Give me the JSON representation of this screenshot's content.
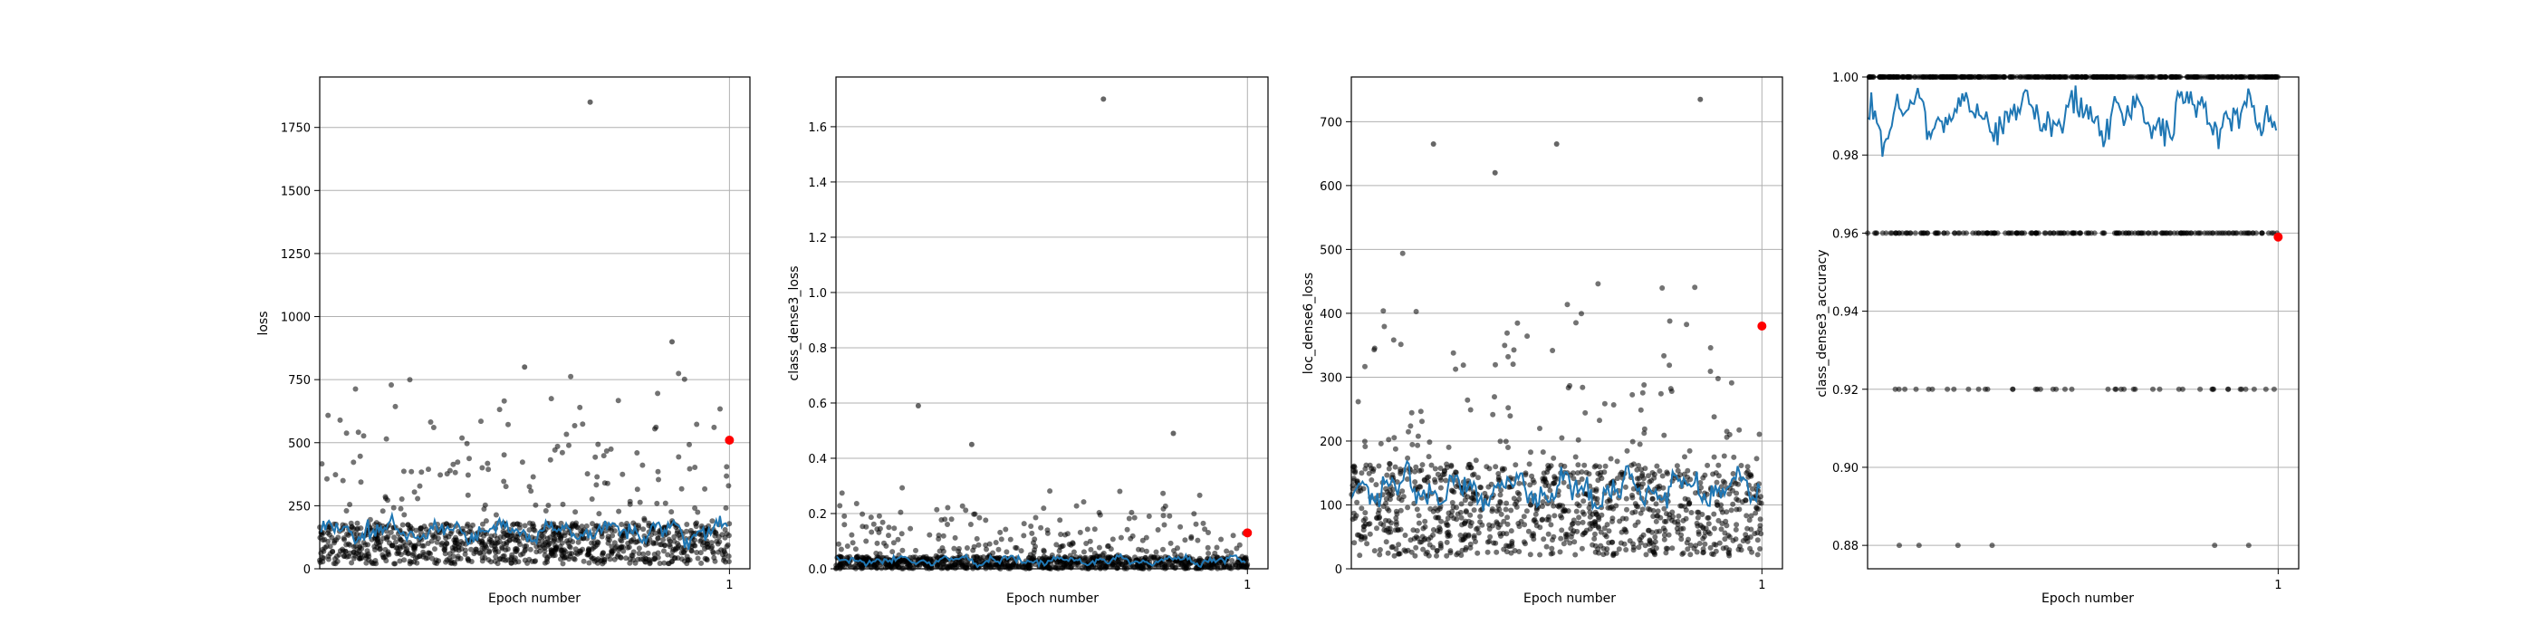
{
  "figure": {
    "background": "#ffffff",
    "point_color": "#000000",
    "moving_average_color": "#1f77b4",
    "last_point_color": "#ff0000",
    "grid": "y"
  },
  "chart_data": [
    {
      "type": "scatter",
      "xlabel": "Epoch number",
      "ylabel": "loss",
      "xlim": [
        0,
        1.05
      ],
      "ylim": [
        0,
        1950
      ],
      "xticks": [
        "1"
      ],
      "yticks": [
        "0",
        "250",
        "500",
        "750",
        "1000",
        "1250",
        "1500",
        "1750"
      ],
      "ytick_values": [
        0,
        250,
        500,
        750,
        1000,
        1250,
        1500,
        1750
      ],
      "grid": true,
      "series": [
        {
          "kind": "scatter",
          "note_count": 1200,
          "y_typical": [
            20,
            200
          ],
          "y_spread_max": 800,
          "outliers": [
            {
              "x": 0.66,
              "y": 1850
            },
            {
              "x": 0.86,
              "y": 900
            },
            {
              "x": 0.5,
              "y": 800
            }
          ]
        },
        {
          "kind": "line",
          "values_around": 150,
          "amplitude": 40
        },
        {
          "kind": "point",
          "x": 1.0,
          "y": 510
        }
      ]
    },
    {
      "type": "scatter",
      "xlabel": "Epoch number",
      "ylabel": "class_dense3_loss",
      "xlim": [
        0,
        1.05
      ],
      "ylim": [
        0,
        1.78
      ],
      "xticks": [
        "1"
      ],
      "yticks": [
        "0.0",
        "0.2",
        "0.4",
        "0.6",
        "0.8",
        "1.0",
        "1.2",
        "1.4",
        "1.6"
      ],
      "ytick_values": [
        0,
        0.2,
        0.4,
        0.6,
        0.8,
        1.0,
        1.2,
        1.4,
        1.6
      ],
      "grid": true,
      "series": [
        {
          "kind": "scatter",
          "note_count": 1200,
          "y_typical": [
            0,
            0.05
          ],
          "y_spread_max": 0.3,
          "outliers": [
            {
              "x": 0.65,
              "y": 1.7
            },
            {
              "x": 0.2,
              "y": 0.59
            },
            {
              "x": 0.82,
              "y": 0.49
            },
            {
              "x": 0.33,
              "y": 0.45
            }
          ]
        },
        {
          "kind": "line",
          "values_around": 0.03,
          "amplitude": 0.015
        },
        {
          "kind": "point",
          "x": 1.0,
          "y": 0.13
        }
      ]
    },
    {
      "type": "scatter",
      "xlabel": "Epoch number",
      "ylabel": "loc_dense6_loss",
      "xlim": [
        0,
        1.05
      ],
      "ylim": [
        0,
        770
      ],
      "xticks": [
        "1"
      ],
      "yticks": [
        "0",
        "100",
        "200",
        "300",
        "400",
        "500",
        "600",
        "700"
      ],
      "ytick_values": [
        0,
        100,
        200,
        300,
        400,
        500,
        600,
        700
      ],
      "grid": true,
      "series": [
        {
          "kind": "scatter",
          "note_count": 1200,
          "y_typical": [
            20,
            180
          ],
          "y_spread_max": 500,
          "outliers": [
            {
              "x": 0.85,
              "y": 735
            },
            {
              "x": 0.2,
              "y": 665
            },
            {
              "x": 0.5,
              "y": 665
            },
            {
              "x": 0.35,
              "y": 620
            }
          ]
        },
        {
          "kind": "line",
          "values_around": 125,
          "amplitude": 25
        },
        {
          "kind": "point",
          "x": 1.0,
          "y": 380
        }
      ]
    },
    {
      "type": "scatter",
      "xlabel": "Epoch number",
      "ylabel": "class_dense3_accuracy",
      "xlim": [
        0,
        1.05
      ],
      "ylim": [
        0.874,
        1.0
      ],
      "xticks": [
        "1"
      ],
      "yticks": [
        "0.88",
        "0.90",
        "0.92",
        "0.94",
        "0.96",
        "0.98",
        "1.00"
      ],
      "ytick_values": [
        0.88,
        0.9,
        0.92,
        0.94,
        0.96,
        0.98,
        1.0
      ],
      "grid": true,
      "series": [
        {
          "kind": "scatter",
          "levels": [
            1.0,
            0.96,
            0.92,
            0.88
          ]
        },
        {
          "kind": "line",
          "values_around": 0.99,
          "amplitude": 0.006
        },
        {
          "kind": "point",
          "x": 1.0,
          "y": 0.959
        }
      ]
    }
  ]
}
